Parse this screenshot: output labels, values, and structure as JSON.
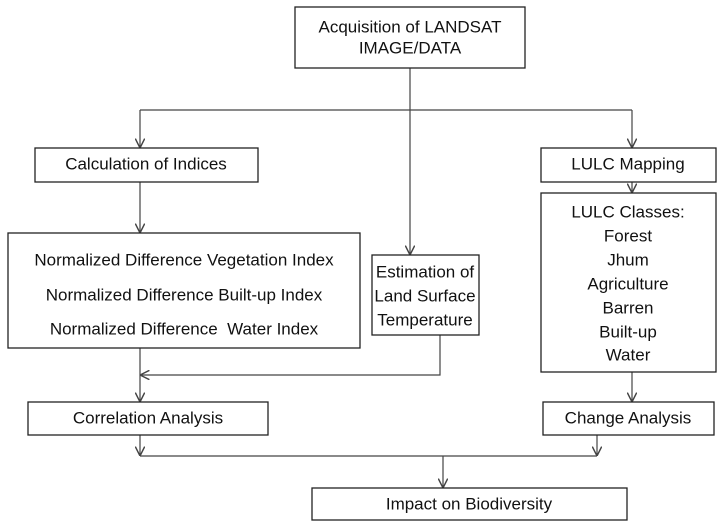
{
  "nodes": [
    {
      "lines": [
        "Acquisition of LANDSAT",
        "IMAGE/DATA"
      ]
    },
    {
      "lines": [
        "Calculation of Indices"
      ]
    },
    {
      "lines": [
        "LULC Mapping"
      ]
    },
    {
      "lines": [
        "Normalized Difference Vegetation Index",
        "Normalized Difference Built-up Index",
        "Normalized Difference  Water Index"
      ]
    },
    {
      "lines": [
        "Estimation of",
        "Land Surface",
        "Temperature"
      ]
    },
    {
      "lines": [
        "LULC Classes:",
        "Forest",
        "Jhum",
        "Agriculture",
        "Barren",
        "Built-up",
        "Water"
      ]
    },
    {
      "lines": [
        "Correlation Analysis"
      ]
    },
    {
      "lines": [
        "Change Analysis"
      ]
    },
    {
      "lines": [
        "Impact on Biodiversity"
      ]
    }
  ]
}
